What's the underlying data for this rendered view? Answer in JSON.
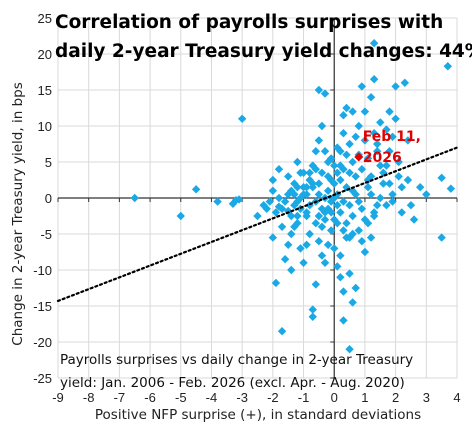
{
  "chart_data": {
    "type": "scatter",
    "title_line1": "Correlation of payrolls surprises with",
    "title_line2": "daily 2-year Treasury yield changes: 44%",
    "xlabel": "Positive NFP surprise (+), in standard deviations",
    "ylabel": "Change in 2-year Treasury yield, in bps",
    "note_line1": "Payrolls surprises vs daily change in 2-year Treasury",
    "note_line2": "yield: Jan. 2006 - Feb. 2026 (excl. Apr. - Aug. 2020)",
    "xlim": [
      -9,
      4
    ],
    "ylim": [
      -25,
      25
    ],
    "xticks": [
      -9,
      -8,
      -7,
      -6,
      -5,
      -4,
      -3,
      -2,
      -1,
      0,
      1,
      2,
      3,
      4
    ],
    "yticks": [
      -25,
      -20,
      -15,
      -10,
      -5,
      0,
      5,
      10,
      15,
      20,
      25
    ],
    "grid": true,
    "point_color": "#1ba9e6",
    "highlight_color": "#e00000",
    "trend_color": "#000000",
    "trendline": {
      "type": "linear",
      "x": [
        -9,
        4
      ],
      "y": [
        -14.3,
        7.0
      ]
    },
    "highlight": {
      "label_line1": "Feb 11,",
      "label_line2": "2026",
      "x": 0.8,
      "y": 5.7
    },
    "points": [
      [
        -6.5,
        0
      ],
      [
        -5.0,
        -2.5
      ],
      [
        -4.5,
        1.2
      ],
      [
        -3.8,
        -0.5
      ],
      [
        -3.2,
        -0.3
      ],
      [
        -3.0,
        11.0
      ],
      [
        -2.5,
        -2.5
      ],
      [
        -2.2,
        -1.5
      ],
      [
        -1.8,
        -1.2
      ],
      [
        -1.5,
        -1.8
      ],
      [
        -3.3,
        -0.8
      ],
      [
        -3.1,
        -0.2
      ],
      [
        -2.3,
        -1.0
      ],
      [
        -2.0,
        -5.5
      ],
      [
        -1.9,
        -11.8
      ],
      [
        -1.7,
        -18.5
      ],
      [
        -1.6,
        -8.5
      ],
      [
        -1.5,
        -6.5
      ],
      [
        -1.4,
        -10.0
      ],
      [
        -1.3,
        -4.0
      ],
      [
        -1.2,
        -3.5
      ],
      [
        -1.1,
        -7.0
      ],
      [
        -1.0,
        -9.0
      ],
      [
        -0.9,
        -2.0
      ],
      [
        -0.8,
        -5.0
      ],
      [
        -0.7,
        -15.5
      ],
      [
        -0.7,
        -16.5
      ],
      [
        -0.6,
        -12.0
      ],
      [
        -0.5,
        -6.0
      ],
      [
        -0.4,
        -8.0
      ],
      [
        -0.3,
        -3.0
      ],
      [
        -0.2,
        -1.5
      ],
      [
        -0.1,
        -4.5
      ],
      [
        0.0,
        -7.0
      ],
      [
        0.1,
        -9.5
      ],
      [
        0.2,
        -11.0
      ],
      [
        0.3,
        -13.0
      ],
      [
        0.4,
        -5.5
      ],
      [
        0.5,
        -10.5
      ],
      [
        0.6,
        -14.5
      ],
      [
        0.7,
        -12.5
      ],
      [
        0.5,
        -21.0
      ],
      [
        0.3,
        -17.0
      ],
      [
        0.2,
        -8.0
      ],
      [
        -0.3,
        -9.0
      ],
      [
        -0.6,
        -3.5
      ],
      [
        -0.9,
        -6.5
      ],
      [
        -1.2,
        -2.5
      ],
      [
        -1.4,
        -5.0
      ],
      [
        -1.7,
        -4.0
      ],
      [
        -2.0,
        2.5
      ],
      [
        -1.8,
        4.0
      ],
      [
        -1.5,
        3.0
      ],
      [
        -1.4,
        1.0
      ],
      [
        -1.3,
        2.0
      ],
      [
        -1.2,
        5.0
      ],
      [
        -1.1,
        3.5
      ],
      [
        -1.0,
        1.5
      ],
      [
        -0.9,
        0.5
      ],
      [
        -0.8,
        2.5
      ],
      [
        -0.7,
        4.5
      ],
      [
        -0.6,
        6.5
      ],
      [
        -0.5,
        8.0
      ],
      [
        -0.5,
        15.0
      ],
      [
        -0.4,
        10.0
      ],
      [
        -0.3,
        14.5
      ],
      [
        -0.2,
        3.0
      ],
      [
        -0.1,
        5.5
      ],
      [
        0.0,
        2.0
      ],
      [
        0.1,
        7.0
      ],
      [
        0.1,
        0.5
      ],
      [
        0.2,
        4.5
      ],
      [
        0.3,
        9.0
      ],
      [
        0.3,
        11.5
      ],
      [
        0.4,
        12.5
      ],
      [
        0.5,
        3.5
      ],
      [
        0.6,
        12.0
      ],
      [
        0.6,
        1.0
      ],
      [
        0.7,
        8.5
      ],
      [
        0.8,
        10.0
      ],
      [
        0.9,
        15.5
      ],
      [
        1.0,
        12.0
      ],
      [
        1.1,
        2.5
      ],
      [
        1.2,
        14.0
      ],
      [
        1.3,
        21.5
      ],
      [
        1.3,
        16.5
      ],
      [
        1.4,
        7.5
      ],
      [
        1.5,
        10.5
      ],
      [
        1.6,
        3.5
      ],
      [
        1.7,
        4.5
      ],
      [
        1.8,
        12.0
      ],
      [
        1.9,
        8.5
      ],
      [
        2.0,
        15.5
      ],
      [
        2.1,
        5.0
      ],
      [
        2.2,
        1.5
      ],
      [
        2.3,
        16.0
      ],
      [
        2.0,
        11.0
      ],
      [
        1.9,
        0.5
      ],
      [
        1.8,
        6.5
      ],
      [
        1.7,
        9.5
      ],
      [
        1.6,
        2.0
      ],
      [
        1.5,
        0.0
      ],
      [
        1.4,
        -1.0
      ],
      [
        1.3,
        -2.0
      ],
      [
        1.2,
        0.5
      ],
      [
        1.1,
        1.5
      ],
      [
        1.0,
        -3.0
      ],
      [
        0.9,
        -1.5
      ],
      [
        0.8,
        -0.5
      ],
      [
        0.7,
        0.5
      ],
      [
        0.6,
        -2.5
      ],
      [
        0.5,
        -1.0
      ],
      [
        0.4,
        1.5
      ],
      [
        0.3,
        -0.5
      ],
      [
        0.2,
        2.5
      ],
      [
        0.1,
        -1.0
      ],
      [
        0.0,
        0.0
      ],
      [
        -0.1,
        -0.5
      ],
      [
        -0.2,
        1.0
      ],
      [
        -0.3,
        0.0
      ],
      [
        -0.4,
        -1.5
      ],
      [
        -0.5,
        0.5
      ],
      [
        -0.6,
        -0.5
      ],
      [
        -0.7,
        1.5
      ],
      [
        -0.8,
        -1.0
      ],
      [
        -0.9,
        -2.5
      ],
      [
        -1.0,
        0.5
      ],
      [
        -1.1,
        -1.5
      ],
      [
        -1.2,
        -0.5
      ],
      [
        -1.3,
        0.5
      ],
      [
        -1.4,
        -2.5
      ],
      [
        -1.5,
        0.5
      ],
      [
        -1.6,
        -0.5
      ],
      [
        -1.7,
        -1.5
      ],
      [
        -1.8,
        0.0
      ],
      [
        -1.9,
        -2.0
      ],
      [
        -2.0,
        1.0
      ],
      [
        -2.1,
        -0.5
      ],
      [
        0.8,
        -4.5
      ],
      [
        0.9,
        -6.0
      ],
      [
        1.0,
        -7.5
      ],
      [
        1.1,
        -3.5
      ],
      [
        1.2,
        -5.5
      ],
      [
        1.3,
        -2.5
      ],
      [
        0.6,
        -5.0
      ],
      [
        0.4,
        -3.5
      ],
      [
        0.2,
        -2.0
      ],
      [
        0.0,
        -3.0
      ],
      [
        -0.2,
        -6.5
      ],
      [
        -0.4,
        -4.0
      ],
      [
        2.4,
        2.5
      ],
      [
        2.5,
        -1.0
      ],
      [
        2.6,
        -3.0
      ],
      [
        2.8,
        1.5
      ],
      [
        3.0,
        0.5
      ],
      [
        3.5,
        -5.5
      ],
      [
        3.5,
        2.8
      ],
      [
        3.7,
        18.3
      ],
      [
        3.8,
        1.3
      ],
      [
        2.4,
        8.0
      ],
      [
        2.2,
        -2.0
      ],
      [
        2.1,
        3.0
      ],
      [
        1.9,
        -0.5
      ],
      [
        1.8,
        2.0
      ],
      [
        1.7,
        -1.0
      ],
      [
        1.5,
        4.5
      ],
      [
        1.4,
        6.5
      ],
      [
        1.3,
        9.0
      ],
      [
        1.2,
        3.0
      ],
      [
        1.1,
        5.5
      ],
      [
        1.0,
        8.0
      ],
      [
        0.9,
        4.0
      ],
      [
        0.8,
        6.0
      ],
      [
        0.7,
        3.0
      ],
      [
        0.6,
        5.0
      ],
      [
        0.5,
        7.5
      ],
      [
        0.4,
        6.0
      ],
      [
        0.3,
        4.0
      ],
      [
        0.2,
        6.5
      ],
      [
        0.1,
        3.5
      ],
      [
        0.0,
        4.5
      ],
      [
        -0.1,
        2.5
      ],
      [
        -0.2,
        5.0
      ],
      [
        -0.3,
        6.5
      ],
      [
        -0.4,
        3.5
      ],
      [
        -0.5,
        2.0
      ],
      [
        -0.6,
        4.0
      ],
      [
        -0.7,
        2.0
      ],
      [
        -0.8,
        3.5
      ],
      [
        -0.9,
        1.5
      ],
      [
        -1.0,
        3.5
      ],
      [
        -1.1,
        0.0
      ],
      [
        -1.2,
        1.5
      ],
      [
        -1.3,
        -1.0
      ],
      [
        -0.5,
        -2.5
      ],
      [
        -0.3,
        -2.0
      ],
      [
        -0.1,
        -2.0
      ],
      [
        0.1,
        -3.5
      ],
      [
        0.3,
        -4.5
      ],
      [
        0.5,
        -5.5
      ]
    ]
  }
}
